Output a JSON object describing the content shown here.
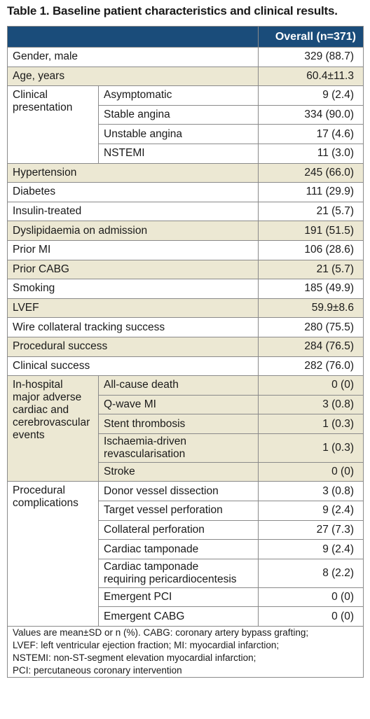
{
  "title": "Table 1. Baseline patient characteristics and clinical results.",
  "column_header": "Overall (n=371)",
  "rows": {
    "gender": {
      "label": "Gender, male",
      "value": "329 (88.7)"
    },
    "age": {
      "label": "Age, years",
      "value": "60.4±11.3"
    },
    "clinical_presentation": {
      "label_line1": "Clinical",
      "label_line2": "presentation",
      "items": [
        {
          "label": "Asymptomatic",
          "value": "9 (2.4)"
        },
        {
          "label": "Stable angina",
          "value": "334 (90.0)"
        },
        {
          "label": "Unstable angina",
          "value": "17 (4.6)"
        },
        {
          "label": "NSTEMI",
          "value": "11 (3.0)"
        }
      ]
    },
    "hypertension": {
      "label": "Hypertension",
      "value": "245 (66.0)"
    },
    "diabetes": {
      "label": "Diabetes",
      "value": "111 (29.9)"
    },
    "insulin": {
      "label": "Insulin-treated",
      "value": "21 (5.7)"
    },
    "dyslipidaemia": {
      "label": "Dyslipidaemia on admission",
      "value": "191 (51.5)"
    },
    "prior_mi": {
      "label": "Prior MI",
      "value": "106 (28.6)"
    },
    "prior_cabg": {
      "label": "Prior CABG",
      "value": "21 (5.7)"
    },
    "smoking": {
      "label": "Smoking",
      "value": "185 (49.9)"
    },
    "lvef": {
      "label": "LVEF",
      "value": "59.9±8.6"
    },
    "wire": {
      "label": "Wire collateral tracking success",
      "value": "280 (75.5)"
    },
    "procedural_success": {
      "label": "Procedural success",
      "value": "284 (76.5)"
    },
    "clinical_success": {
      "label": "Clinical success",
      "value": "282 (76.0)"
    },
    "macce": {
      "label_lines": [
        "In-hospital",
        "major adverse",
        "cardiac and",
        "cerebrovascular",
        "events"
      ],
      "items": [
        {
          "label": "All-cause death",
          "value": "0 (0)"
        },
        {
          "label": "Q-wave MI",
          "value": "3 (0.8)"
        },
        {
          "label": "Stent thrombosis",
          "value": "1 (0.3)"
        },
        {
          "label_line1": "Ischaemia-driven",
          "label_line2": "revascularisation",
          "value": "1 (0.3)"
        },
        {
          "label": "Stroke",
          "value": "0 (0)"
        }
      ]
    },
    "complications": {
      "label_line1": "Procedural",
      "label_line2": "complications",
      "items": [
        {
          "label": "Donor vessel dissection",
          "value": "3 (0.8)"
        },
        {
          "label": "Target vessel perforation",
          "value": "9 (2.4)"
        },
        {
          "label": "Collateral perforation",
          "value": "27 (7.3)"
        },
        {
          "label": "Cardiac tamponade",
          "value": "9 (2.4)"
        },
        {
          "label_line1": "Cardiac tamponade",
          "label_line2": "requiring pericardiocentesis",
          "value": "8 (2.2)"
        },
        {
          "label": "Emergent PCI",
          "value": "0 (0)"
        },
        {
          "label": "Emergent CABG",
          "value": "0 (0)"
        }
      ]
    }
  },
  "footnote": [
    "Values are mean±SD or n (%). CABG: coronary artery bypass grafting;",
    "LVEF: left ventricular ejection fraction; MI: myocardial infarction;",
    "NSTEMI: non-ST-segment elevation myocardial infarction;",
    "PCI: percutaneous coronary intervention"
  ]
}
